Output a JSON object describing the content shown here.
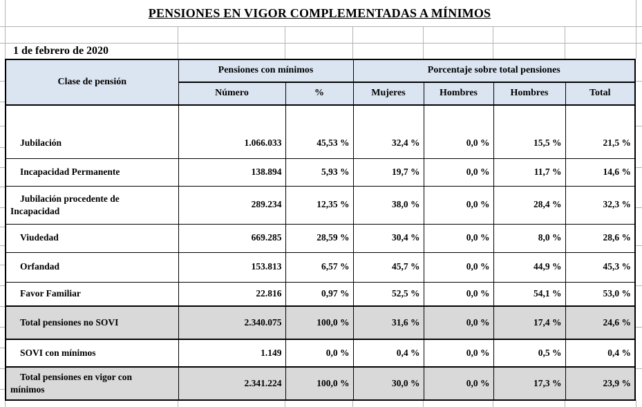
{
  "page": {
    "title": "PENSIONES EN VIGOR COMPLEMENTADAS A MÍNIMOS",
    "date_label": "1 de febrero de 2020"
  },
  "table": {
    "corner_header": "Clase de pensión",
    "group_headers": {
      "pensiones_con_minimos": "Pensiones con mínimos",
      "porcentaje_sobre_total": "Porcentaje sobre total pensiones"
    },
    "sub_headers": {
      "numero": "Número",
      "pct": "%",
      "mujeres": "Mujeres",
      "hombres_1": "Hombres",
      "hombres_2": "Hombres",
      "total": "Total"
    },
    "rows": [
      {
        "label": "Jubilación",
        "numero": "1.066.033",
        "pct": "45,53 %",
        "mujeres": "32,4 %",
        "hombres_1": "0,0 %",
        "hombres_2": "15,5 %",
        "total": "21,5 %"
      },
      {
        "label": "Incapacidad Permanente",
        "numero": "138.894",
        "pct": "5,93 %",
        "mujeres": "19,7 %",
        "hombres_1": "0,0 %",
        "hombres_2": "11,7 %",
        "total": "14,6 %"
      },
      {
        "label": "Jubilación procedente de\nIncapacidad",
        "numero": "289.234",
        "pct": "12,35 %",
        "mujeres": "38,0 %",
        "hombres_1": "0,0 %",
        "hombres_2": "28,4 %",
        "total": "32,3 %"
      },
      {
        "label": "Viudedad",
        "numero": "669.285",
        "pct": "28,59 %",
        "mujeres": "30,4 %",
        "hombres_1": "0,0 %",
        "hombres_2": "8,0 %",
        "total": "28,6 %"
      },
      {
        "label": "Orfandad",
        "numero": "153.813",
        "pct": "6,57 %",
        "mujeres": "45,7 %",
        "hombres_1": "0,0 %",
        "hombres_2": "44,9 %",
        "total": "45,3 %"
      },
      {
        "label": "Favor Familiar",
        "numero": "22.816",
        "pct": "0,97 %",
        "mujeres": "52,5 %",
        "hombres_1": "0,0 %",
        "hombres_2": "54,1 %",
        "total": "53,0 %"
      },
      {
        "label": "Total pensiones no SOVI",
        "numero": "2.340.075",
        "pct": "100,0 %",
        "mujeres": "31,6 %",
        "hombres_1": "0,0 %",
        "hombres_2": "17,4 %",
        "total": "24,6 %"
      },
      {
        "label": "SOVI con mínimos",
        "numero": "1.149",
        "pct": "0,0 %",
        "mujeres": "0,4 %",
        "hombres_1": "0,0 %",
        "hombres_2": "0,5 %",
        "total": "0,4 %"
      },
      {
        "label": "Total pensiones en vigor con\nmínimos",
        "numero": "2.341.224",
        "pct": "100,0 %",
        "mujeres": "30,0 %",
        "hombres_1": "0,0 %",
        "hombres_2": "17,3 %",
        "total": "23,9 %"
      }
    ]
  },
  "colors": {
    "header_fill": "#dbe5f1",
    "total_row_fill": "#d9d9d9",
    "table_border": "#000000",
    "spreadsheet_gridline": "#b3b3b3"
  }
}
